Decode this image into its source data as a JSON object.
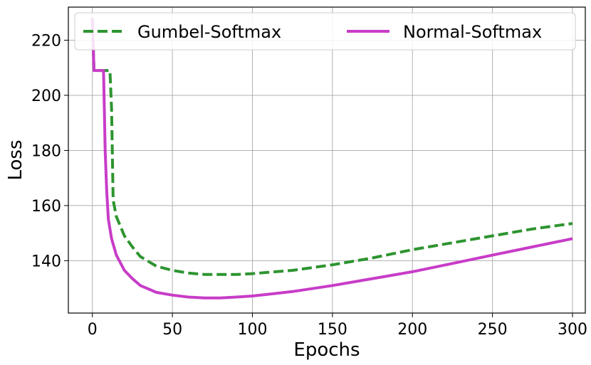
{
  "chart_data": {
    "type": "line",
    "xlabel": "Epochs",
    "ylabel": "Loss",
    "xlim": [
      -15,
      308
    ],
    "ylim": [
      121,
      232
    ],
    "xticks": [
      0,
      50,
      100,
      150,
      200,
      250,
      300
    ],
    "yticks": [
      140,
      160,
      180,
      200,
      220
    ],
    "grid": true,
    "legend_position": "top",
    "series": [
      {
        "name": "Gumbel-Softmax",
        "color": "#2e9430",
        "style": "dashed",
        "x": [
          0,
          1,
          2,
          5,
          8,
          10,
          11,
          12,
          13,
          15,
          20,
          25,
          30,
          40,
          50,
          60,
          70,
          80,
          90,
          100,
          125,
          150,
          175,
          200,
          225,
          250,
          275,
          300
        ],
        "y": [
          228,
          209,
          209,
          209,
          209,
          209,
          209,
          195,
          162,
          156,
          149,
          145,
          141.5,
          138,
          136.5,
          135.5,
          135,
          135,
          135,
          135.3,
          136.5,
          138.5,
          141,
          144,
          146.5,
          149,
          151.5,
          153.5
        ]
      },
      {
        "name": "Normal-Softmax",
        "color": "#c83cc8",
        "style": "solid",
        "x": [
          0,
          1,
          2,
          5,
          7,
          8,
          9,
          10,
          12,
          15,
          20,
          25,
          30,
          40,
          50,
          60,
          70,
          80,
          90,
          100,
          125,
          150,
          175,
          200,
          225,
          250,
          275,
          300
        ],
        "y": [
          228,
          209,
          209,
          209,
          209,
          180,
          165,
          155,
          148,
          142,
          136.5,
          133.5,
          131,
          128.5,
          127.5,
          126.8,
          126.5,
          126.5,
          126.8,
          127.2,
          128.8,
          131,
          133.5,
          136,
          139,
          142,
          145,
          148
        ]
      }
    ]
  }
}
